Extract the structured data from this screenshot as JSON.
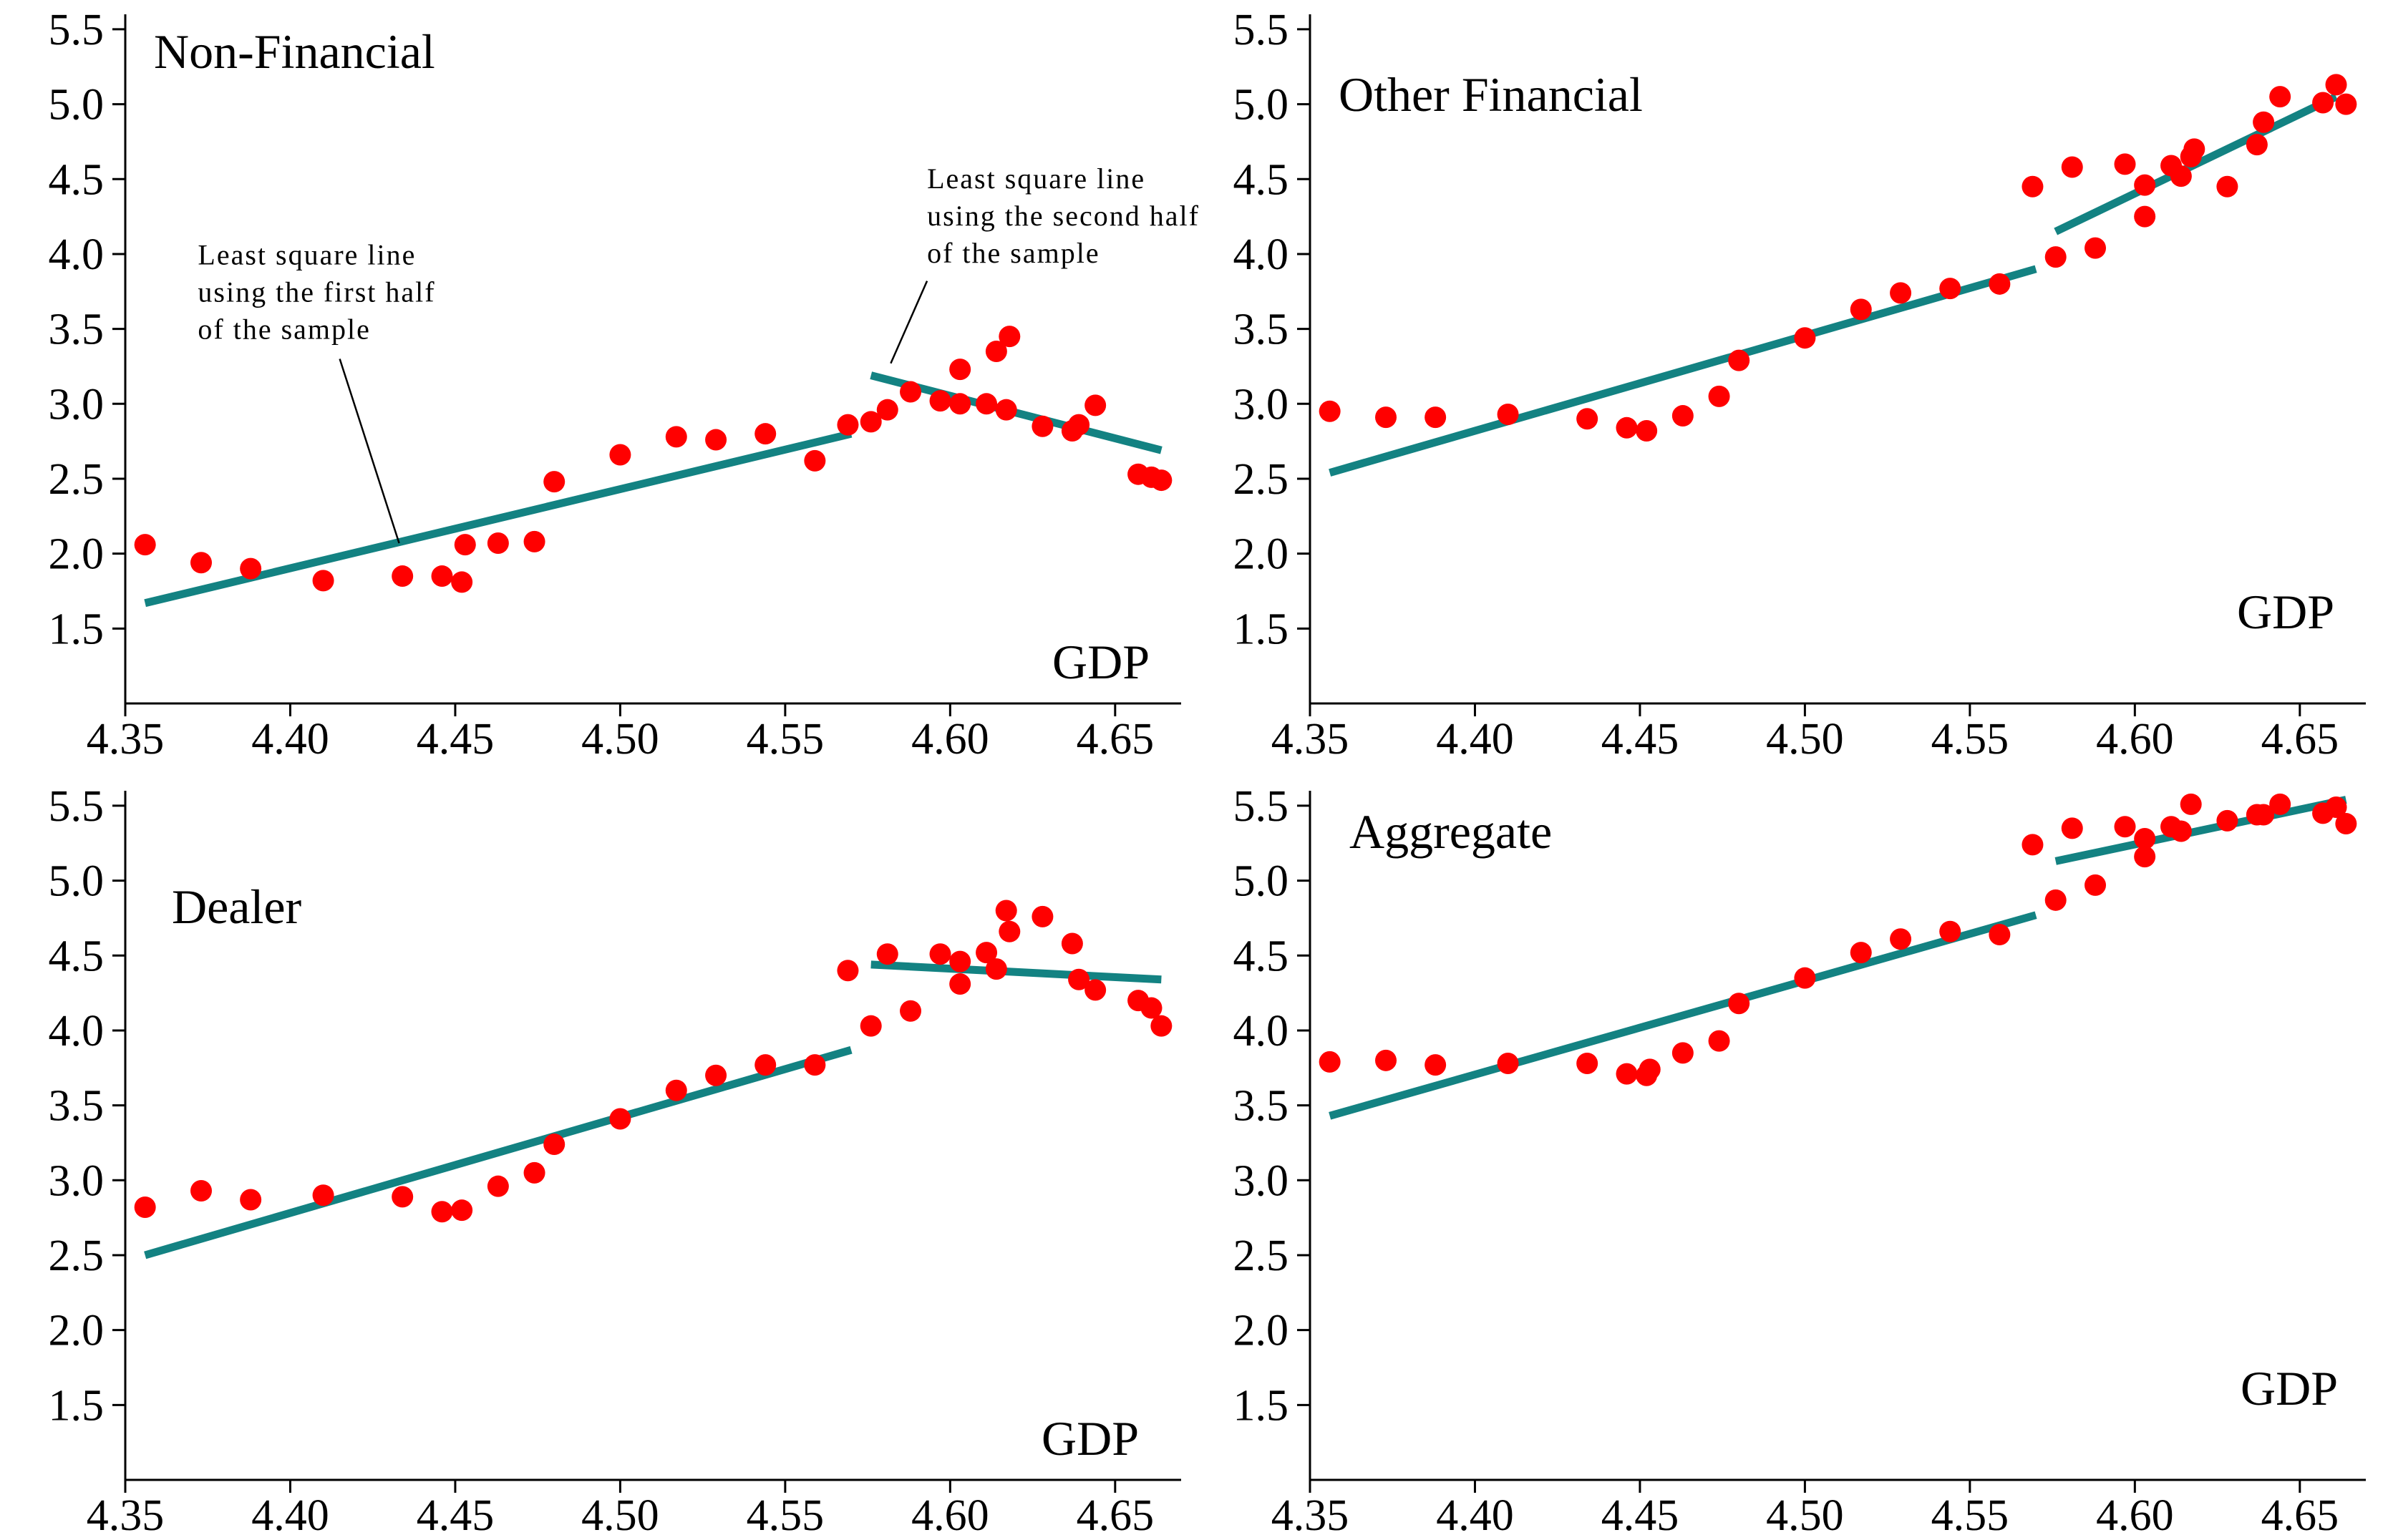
{
  "colors": {
    "points": "#ff0000",
    "fit": "#138282",
    "axes": "#000000",
    "background": "#ffffff"
  },
  "chart_data": [
    {
      "type": "scatter",
      "title": "Non-Financial",
      "xlabel": "GDP",
      "ylabel": "",
      "xlim": [
        4.35,
        4.67
      ],
      "ylim": [
        1.0,
        5.6
      ],
      "xticks": [
        "4.35",
        "4.40",
        "4.45",
        "4.50",
        "4.55",
        "4.60",
        "4.65"
      ],
      "yticks": [
        "1.5",
        "2.0",
        "2.5",
        "3.0",
        "3.5",
        "4.0",
        "4.5",
        "5.0",
        "5.5"
      ],
      "points": [
        [
          4.356,
          2.06
        ],
        [
          4.373,
          1.94
        ],
        [
          4.388,
          1.9
        ],
        [
          4.41,
          1.82
        ],
        [
          4.434,
          1.85
        ],
        [
          4.446,
          1.85
        ],
        [
          4.452,
          1.81
        ],
        [
          4.453,
          2.06
        ],
        [
          4.463,
          2.07
        ],
        [
          4.474,
          2.08
        ],
        [
          4.48,
          2.48
        ],
        [
          4.5,
          2.66
        ],
        [
          4.517,
          2.78
        ],
        [
          4.529,
          2.76
        ],
        [
          4.544,
          2.8
        ],
        [
          4.559,
          2.62
        ],
        [
          4.569,
          2.86
        ],
        [
          4.576,
          2.88
        ],
        [
          4.581,
          2.96
        ],
        [
          4.588,
          3.08
        ],
        [
          4.597,
          3.02
        ],
        [
          4.603,
          3.0
        ],
        [
          4.603,
          3.23
        ],
        [
          4.611,
          3.0
        ],
        [
          4.614,
          3.35
        ],
        [
          4.617,
          2.96
        ],
        [
          4.618,
          3.45
        ],
        [
          4.628,
          2.85
        ],
        [
          4.637,
          2.82
        ],
        [
          4.639,
          2.86
        ],
        [
          4.644,
          2.99
        ],
        [
          4.657,
          2.53
        ],
        [
          4.661,
          2.51
        ],
        [
          4.664,
          2.49
        ]
      ],
      "fit_lines": [
        {
          "name": "first-half",
          "x": [
            4.356,
            4.57
          ],
          "y": [
            1.67,
            2.8
          ]
        },
        {
          "name": "second-half",
          "x": [
            4.576,
            4.664
          ],
          "y": [
            3.19,
            2.69
          ]
        }
      ],
      "annotations": [
        {
          "name": "annotation-first-half",
          "lines": [
            "Least square line",
            "using the first half",
            "of the sample"
          ],
          "text_at": [
            4.372,
            3.93
          ],
          "arrow_from": [
            4.415,
            3.3
          ],
          "arrow_to": [
            4.433,
            2.07
          ]
        },
        {
          "name": "annotation-second-half",
          "lines": [
            "Least square line",
            "using the second half",
            "of the sample"
          ],
          "text_at": [
            4.593,
            4.44
          ],
          "arrow_from": [
            4.593,
            3.82
          ],
          "arrow_to": [
            4.582,
            3.27
          ]
        }
      ]
    },
    {
      "type": "scatter",
      "title": "Other Financial",
      "xlabel": "GDP",
      "ylabel": "",
      "xlim": [
        4.35,
        4.67
      ],
      "ylim": [
        1.0,
        5.6
      ],
      "xticks": [
        "4.35",
        "4.40",
        "4.45",
        "4.50",
        "4.55",
        "4.60",
        "4.65"
      ],
      "yticks": [
        "1.5",
        "2.0",
        "2.5",
        "3.0",
        "3.5",
        "4.0",
        "4.5",
        "5.0",
        "5.5"
      ],
      "points": [
        [
          4.356,
          2.95
        ],
        [
          4.373,
          2.91
        ],
        [
          4.388,
          2.91
        ],
        [
          4.41,
          2.93
        ],
        [
          4.434,
          2.9
        ],
        [
          4.446,
          2.84
        ],
        [
          4.452,
          2.82
        ],
        [
          4.463,
          2.92
        ],
        [
          4.474,
          3.05
        ],
        [
          4.48,
          3.29
        ],
        [
          4.5,
          3.44
        ],
        [
          4.517,
          3.63
        ],
        [
          4.529,
          3.74
        ],
        [
          4.544,
          3.77
        ],
        [
          4.559,
          3.8
        ],
        [
          4.569,
          4.45
        ],
        [
          4.576,
          3.98
        ],
        [
          4.581,
          4.58
        ],
        [
          4.588,
          4.04
        ],
        [
          4.597,
          4.6
        ],
        [
          4.603,
          4.46
        ],
        [
          4.603,
          4.25
        ],
        [
          4.611,
          4.59
        ],
        [
          4.614,
          4.52
        ],
        [
          4.617,
          4.65
        ],
        [
          4.618,
          4.7
        ],
        [
          4.628,
          4.45
        ],
        [
          4.637,
          4.73
        ],
        [
          4.639,
          4.88
        ],
        [
          4.644,
          5.05
        ],
        [
          4.657,
          5.01
        ],
        [
          4.661,
          5.13
        ],
        [
          4.664,
          5.0
        ]
      ],
      "fit_lines": [
        {
          "name": "first-half",
          "x": [
            4.356,
            4.57
          ],
          "y": [
            2.54,
            3.9
          ]
        },
        {
          "name": "second-half",
          "x": [
            4.576,
            4.661
          ],
          "y": [
            4.15,
            5.05
          ]
        }
      ],
      "annotations": []
    },
    {
      "type": "scatter",
      "title": "Dealer",
      "xlabel": "GDP",
      "ylabel": "",
      "xlim": [
        4.35,
        4.67
      ],
      "ylim": [
        1.0,
        5.6
      ],
      "xticks": [
        "4.35",
        "4.40",
        "4.45",
        "4.50",
        "4.55",
        "4.60",
        "4.65"
      ],
      "yticks": [
        "1.5",
        "2.0",
        "2.5",
        "3.0",
        "3.5",
        "4.0",
        "4.5",
        "5.0",
        "5.5"
      ],
      "points": [
        [
          4.356,
          2.82
        ],
        [
          4.373,
          2.93
        ],
        [
          4.388,
          2.87
        ],
        [
          4.41,
          2.9
        ],
        [
          4.434,
          2.89
        ],
        [
          4.446,
          2.79
        ],
        [
          4.452,
          2.8
        ],
        [
          4.463,
          2.96
        ],
        [
          4.474,
          3.05
        ],
        [
          4.48,
          3.24
        ],
        [
          4.5,
          3.41
        ],
        [
          4.517,
          3.6
        ],
        [
          4.529,
          3.7
        ],
        [
          4.544,
          3.77
        ],
        [
          4.559,
          3.77
        ],
        [
          4.569,
          4.4
        ],
        [
          4.576,
          4.03
        ],
        [
          4.581,
          4.51
        ],
        [
          4.588,
          4.13
        ],
        [
          4.597,
          4.51
        ],
        [
          4.603,
          4.46
        ],
        [
          4.603,
          4.31
        ],
        [
          4.611,
          4.52
        ],
        [
          4.614,
          4.41
        ],
        [
          4.617,
          4.8
        ],
        [
          4.618,
          4.66
        ],
        [
          4.628,
          4.76
        ],
        [
          4.637,
          4.58
        ],
        [
          4.639,
          4.34
        ],
        [
          4.644,
          4.27
        ],
        [
          4.657,
          4.2
        ],
        [
          4.661,
          4.15
        ],
        [
          4.664,
          4.03
        ]
      ],
      "fit_lines": [
        {
          "name": "first-half",
          "x": [
            4.356,
            4.57
          ],
          "y": [
            2.5,
            3.87
          ]
        },
        {
          "name": "second-half",
          "x": [
            4.576,
            4.664
          ],
          "y": [
            4.44,
            4.34
          ]
        }
      ],
      "annotations": []
    },
    {
      "type": "scatter",
      "title": "Aggregate",
      "xlabel": "GDP",
      "ylabel": "",
      "xlim": [
        4.35,
        4.67
      ],
      "ylim": [
        1.0,
        5.6
      ],
      "xticks": [
        "4.35",
        "4.40",
        "4.45",
        "4.50",
        "4.55",
        "4.60",
        "4.65"
      ],
      "yticks": [
        "1.5",
        "2.0",
        "2.5",
        "3.0",
        "3.5",
        "4.0",
        "4.5",
        "5.0",
        "5.5"
      ],
      "points": [
        [
          4.356,
          3.79
        ],
        [
          4.373,
          3.8
        ],
        [
          4.388,
          3.77
        ],
        [
          4.41,
          3.78
        ],
        [
          4.434,
          3.78
        ],
        [
          4.446,
          3.71
        ],
        [
          4.452,
          3.7
        ],
        [
          4.453,
          3.74
        ],
        [
          4.463,
          3.85
        ],
        [
          4.474,
          3.93
        ],
        [
          4.48,
          4.18
        ],
        [
          4.5,
          4.35
        ],
        [
          4.517,
          4.52
        ],
        [
          4.529,
          4.61
        ],
        [
          4.544,
          4.66
        ],
        [
          4.559,
          4.64
        ],
        [
          4.569,
          5.24
        ],
        [
          4.576,
          4.87
        ],
        [
          4.581,
          5.35
        ],
        [
          4.588,
          4.97
        ],
        [
          4.597,
          5.36
        ],
        [
          4.603,
          5.28
        ],
        [
          4.603,
          5.16
        ],
        [
          4.611,
          5.36
        ],
        [
          4.614,
          5.33
        ],
        [
          4.617,
          5.51
        ],
        [
          4.628,
          5.4
        ],
        [
          4.637,
          5.44
        ],
        [
          4.639,
          5.44
        ],
        [
          4.644,
          5.51
        ],
        [
          4.657,
          5.45
        ],
        [
          4.661,
          5.49
        ],
        [
          4.664,
          5.38
        ]
      ],
      "fit_lines": [
        {
          "name": "first-half",
          "x": [
            4.356,
            4.57
          ],
          "y": [
            3.43,
            4.77
          ]
        },
        {
          "name": "second-half",
          "x": [
            4.576,
            4.664
          ],
          "y": [
            5.13,
            5.54
          ]
        }
      ],
      "annotations": []
    }
  ]
}
